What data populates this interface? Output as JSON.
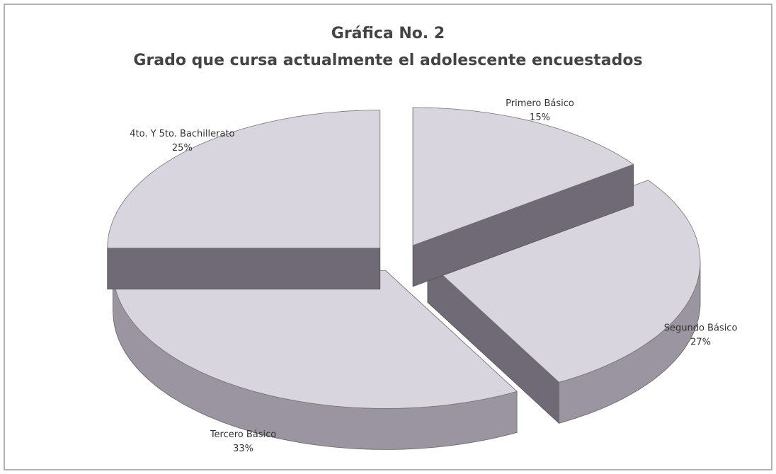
{
  "chart_data": {
    "type": "pie",
    "title": "Gráfica No. 2",
    "subtitle": "Grado que cursa actualmente el adolescente encuestados",
    "categories": [
      "Primero Básico",
      "Segundo Básico",
      "Tercero Básico",
      "4to. Y 5to. Bachillerato"
    ],
    "values": [
      15,
      27,
      33,
      25
    ],
    "value_labels": [
      "15%",
      "27%",
      "33%",
      "25%"
    ],
    "color": "#d9d5df"
  }
}
